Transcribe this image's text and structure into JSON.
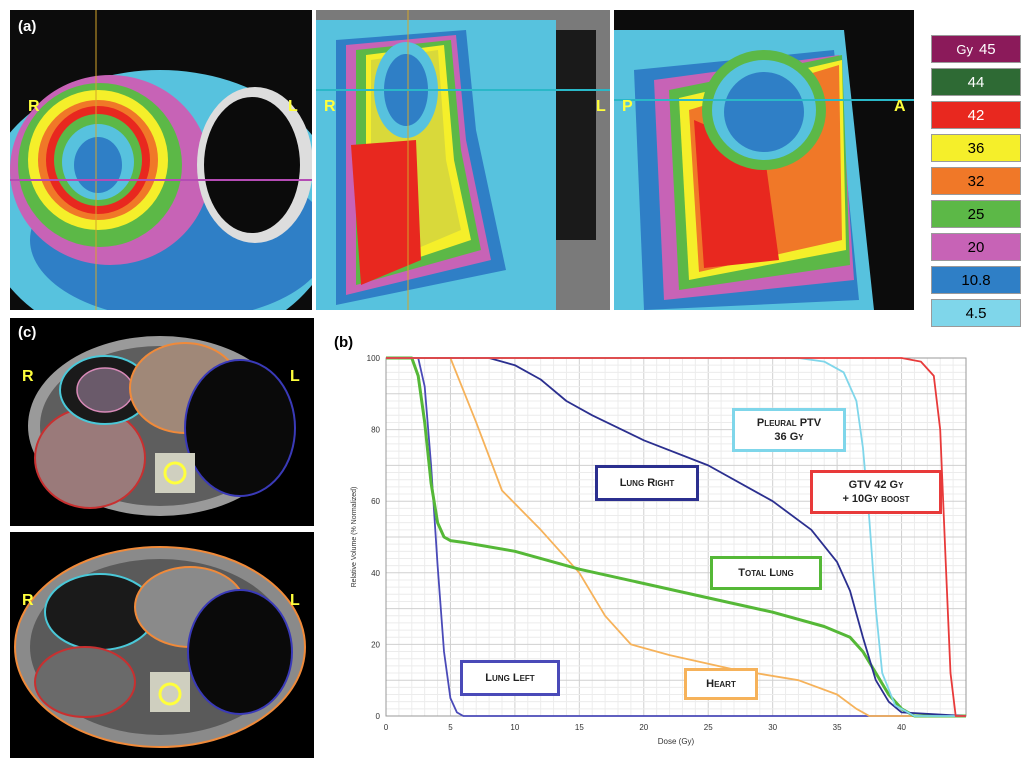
{
  "panels": {
    "a_label": "(a)",
    "b_label": "(b)",
    "c_label": "(c)"
  },
  "orientation": {
    "axial_left": "R",
    "axial_right": "L",
    "coronal_left": "R",
    "coronal_right": "L",
    "sagittal_left": "P",
    "sagittal_right": "A",
    "ct1_left": "R",
    "ct1_right": "L",
    "ct2_left": "R",
    "ct2_right": "L"
  },
  "legend": {
    "unit": "Gy",
    "items": [
      {
        "label": "45",
        "color": "#8b1a5a",
        "text": "#ffffff"
      },
      {
        "label": "44",
        "color": "#2e6a34",
        "text": "#ffffff"
      },
      {
        "label": "42",
        "color": "#e8281f",
        "text": "#ffffff"
      },
      {
        "label": "36",
        "color": "#f5ef2a",
        "text": "#000000"
      },
      {
        "label": "32",
        "color": "#f07828",
        "text": "#000000"
      },
      {
        "label": "25",
        "color": "#5cb847",
        "text": "#000000"
      },
      {
        "label": "20",
        "color": "#c763b6",
        "text": "#000000"
      },
      {
        "label": "10.8",
        "color": "#2f7fc6",
        "text": "#000000"
      },
      {
        "label": "4.5",
        "color": "#7fd6ea",
        "text": "#000000"
      }
    ]
  },
  "chart_data": {
    "type": "line",
    "xlabel": "Dose (Gy)",
    "ylabel": "Relative Volume (% Normalized)",
    "xlim": [
      0,
      45
    ],
    "ylim": [
      0,
      100
    ],
    "xticks": [
      "0",
      "5",
      "10",
      "15",
      "20",
      "25",
      "30",
      "35",
      "40"
    ],
    "yticks": [
      "0",
      "20",
      "40",
      "60",
      "80",
      "100"
    ],
    "grid": true,
    "series": [
      {
        "name": "Lung Left",
        "color": "#4a4ab8",
        "x": [
          0,
          2.5,
          3,
          3.5,
          4,
          4.5,
          5,
          5.5,
          6,
          45
        ],
        "y": [
          100,
          100,
          92,
          70,
          42,
          18,
          5,
          1,
          0,
          0
        ]
      },
      {
        "name": "Heart",
        "color": "#f6b25a",
        "x": [
          0,
          5,
          7,
          9,
          12,
          15,
          17,
          19,
          22,
          27,
          32,
          35,
          36.5,
          37.5,
          45
        ],
        "y": [
          100,
          100,
          82,
          63,
          52,
          40,
          28,
          20,
          17,
          13,
          10,
          6,
          2,
          0,
          0
        ]
      },
      {
        "name": "Total Lung",
        "color": "#55b837",
        "x": [
          0,
          2,
          2.5,
          3,
          3.5,
          4,
          4.5,
          5,
          6,
          10,
          15,
          20,
          25,
          30,
          34,
          36,
          37,
          38,
          39,
          40,
          41,
          45
        ],
        "y": [
          100,
          100,
          95,
          82,
          65,
          54,
          50,
          49,
          48.5,
          46,
          41,
          37,
          33,
          29,
          25,
          22,
          18,
          12,
          6,
          2,
          0,
          0
        ]
      },
      {
        "name": "Lung Right",
        "color": "#2b2f8f",
        "x": [
          0,
          8,
          10,
          12,
          14,
          16,
          20,
          25,
          30,
          33,
          35,
          36,
          37,
          38,
          39,
          40,
          45
        ],
        "y": [
          100,
          100,
          98,
          94,
          88,
          84,
          77,
          70,
          60,
          52,
          43,
          35,
          22,
          10,
          4,
          1,
          0
        ]
      },
      {
        "name": "Pleural PTV 36 Gy",
        "color": "#7fd6ea",
        "x": [
          0,
          32,
          34,
          35.5,
          36.5,
          37,
          37.5,
          38,
          38.5,
          39.5,
          41,
          45
        ],
        "y": [
          100,
          100,
          99,
          96,
          88,
          75,
          55,
          30,
          12,
          3,
          0,
          0
        ]
      },
      {
        "name": "GTV 42 Gy + 10Gy boost",
        "color": "#e83a3a",
        "x": [
          0,
          40,
          41.5,
          42.5,
          43,
          43.4,
          43.8,
          44.2,
          45
        ],
        "y": [
          100,
          100,
          99,
          95,
          80,
          45,
          12,
          0,
          0
        ]
      }
    ]
  },
  "dvh_tags": {
    "lung_left": "Lung Left",
    "heart": "Heart",
    "total_lung": "Total Lung",
    "lung_right": "Lung Right",
    "pleural_line1": "Pleural PTV",
    "pleural_line2": "36 Gy",
    "gtv_line1": "GTV 42 Gy",
    "gtv_line2": "+ 10Gy boost"
  }
}
